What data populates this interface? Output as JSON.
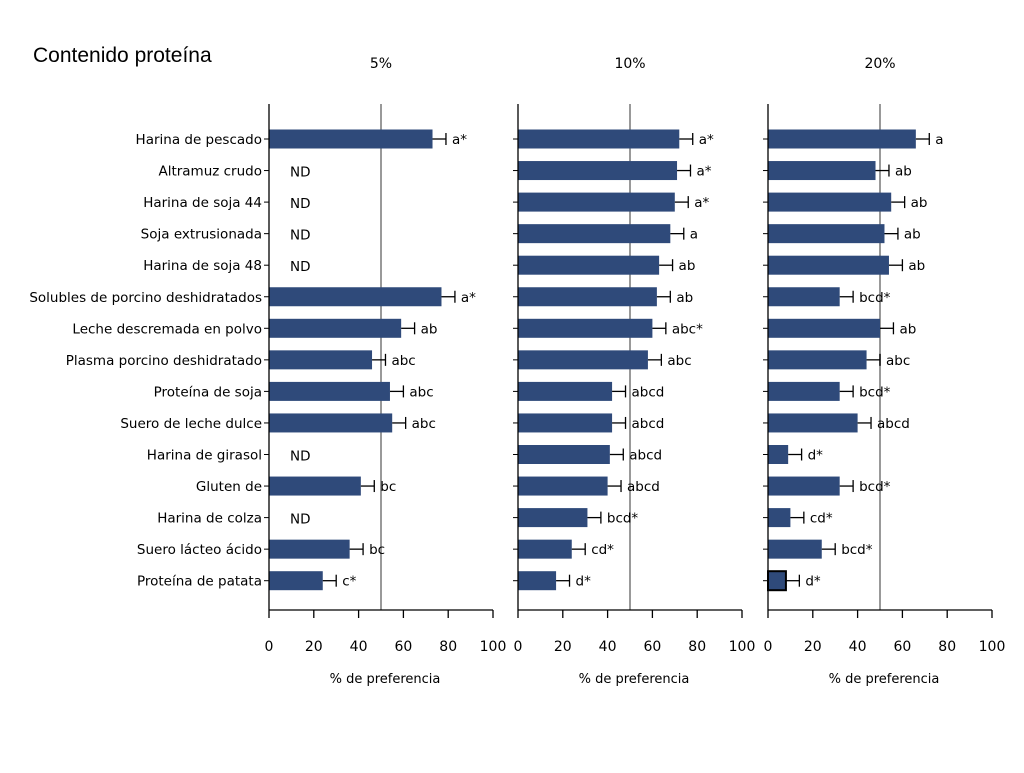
{
  "page": {
    "title": "Contenido proteína"
  },
  "colors": {
    "bar_fill": "#2f4a7a",
    "reference_line": "#999999",
    "axis": "#000000"
  },
  "chart_data": [
    {
      "type": "bar",
      "orientation": "horizontal",
      "title": "5%",
      "xlabel": "% de preferencia",
      "xlim": [
        0,
        100
      ],
      "xticks": [
        0,
        20,
        40,
        60,
        80,
        100
      ],
      "reference_line": 50,
      "categories": [
        "Harina de pescado",
        "Altramuz crudo",
        "Harina de soja 44",
        "Soja extrusionada",
        "Harina de soja 48",
        "Solubles de porcino deshidratados",
        "Leche descremada en polvo",
        "Plasma porcino deshidratado",
        "Proteína de soja",
        "Suero de leche dulce",
        "Harina de girasol",
        "Gluten de",
        "Harina de colza",
        "Suero lácteo ácido",
        "Proteína de patata"
      ],
      "values": [
        73,
        null,
        null,
        null,
        null,
        77,
        59,
        46,
        54,
        55,
        null,
        41,
        null,
        36,
        24
      ],
      "errors": [
        6,
        null,
        null,
        null,
        null,
        6,
        6,
        6,
        6,
        6,
        null,
        6,
        null,
        6,
        6
      ],
      "labels": [
        "a*",
        "ND",
        "ND",
        "ND",
        "ND",
        "a*",
        "ab",
        "abc",
        "abc",
        "abc",
        "ND",
        "bc",
        "ND",
        "bc",
        "c*"
      ]
    },
    {
      "type": "bar",
      "orientation": "horizontal",
      "title": "10%",
      "xlabel": "% de preferencia",
      "xlim": [
        0,
        100
      ],
      "xticks": [
        0,
        20,
        40,
        60,
        80,
        100
      ],
      "reference_line": 50,
      "categories": [
        "Harina de pescado",
        "Altramuz crudo",
        "Harina de soja 44",
        "Soja extrusionada",
        "Harina de soja 48",
        "Solubles de porcino deshidratados",
        "Leche descremada en polvo",
        "Plasma porcino deshidratado",
        "Proteína de soja",
        "Suero de leche dulce",
        "Harina de girasol",
        "Gluten de",
        "Harina de colza",
        "Suero lácteo ácido",
        "Proteína de patata"
      ],
      "values": [
        72,
        71,
        70,
        68,
        63,
        62,
        60,
        58,
        42,
        42,
        41,
        40,
        31,
        24,
        17
      ],
      "errors": [
        6,
        6,
        6,
        6,
        6,
        6,
        6,
        6,
        6,
        6,
        6,
        6,
        6,
        6,
        6
      ],
      "labels": [
        "a*",
        "a*",
        "a*",
        "a",
        "ab",
        "ab",
        "abc*",
        "abc",
        "abcd",
        "abcd",
        "abcd",
        "abcd",
        "bcd*",
        "cd*",
        "d*"
      ]
    },
    {
      "type": "bar",
      "orientation": "horizontal",
      "title": "20%",
      "xlabel": "% de preferencia",
      "xlim": [
        0,
        100
      ],
      "xticks": [
        0,
        20,
        40,
        60,
        80,
        100
      ],
      "reference_line": 50,
      "categories": [
        "Harina de pescado",
        "Altramuz crudo",
        "Harina de soja 44",
        "Soja extrusionada",
        "Harina de soja 48",
        "Solubles de porcino deshidratados",
        "Leche descremada en polvo",
        "Plasma porcino deshidratado",
        "Proteína de soja",
        "Suero de leche dulce",
        "Harina de girasol",
        "Gluten de",
        "Harina de colza",
        "Suero lácteo ácido",
        "Proteína de patata"
      ],
      "values": [
        66,
        48,
        55,
        52,
        54,
        32,
        50,
        44,
        32,
        40,
        9,
        32,
        10,
        24,
        8
      ],
      "errors": [
        6,
        6,
        6,
        6,
        6,
        6,
        6,
        6,
        6,
        6,
        6,
        6,
        6,
        6,
        6
      ],
      "labels": [
        "a",
        "ab",
        "ab",
        "ab",
        "ab",
        "bcd*",
        "ab",
        "abc",
        "bcd*",
        "abcd",
        "d*",
        "bcd*",
        "cd*",
        "bcd*",
        "d*"
      ],
      "outlined_bar": "Proteína de patata"
    }
  ]
}
